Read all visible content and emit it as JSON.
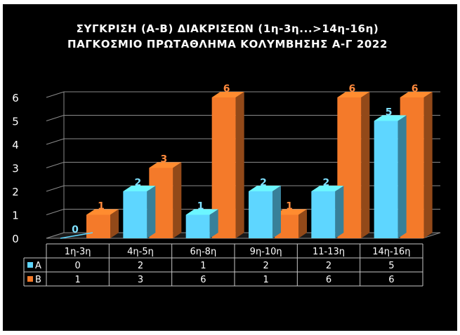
{
  "chart_data": {
    "type": "bar",
    "title_line1": "ΣΥΓΚΡΙΣΗ (Α-Β) ΔΙΑΚΡΙΣΕΩΝ (1η-3η...>14η-16η)",
    "title_line2": "ΠΑΓΚΟΣΜΙΟ ΠΡΩΤΑΘΛΗΜΑ ΚΟΛΥΜΒΗΣΗΣ Α-Γ 2022",
    "categories": [
      "1η-3η",
      "4η-5η",
      "6η-8η",
      "9η-10η",
      "11-13η",
      "14η-16η"
    ],
    "series": [
      {
        "name": "Α",
        "values": [
          0,
          2,
          1,
          2,
          2,
          5
        ],
        "color": "#5ed6ff"
      },
      {
        "name": "Β",
        "values": [
          1,
          3,
          6,
          1,
          6,
          6
        ],
        "color": "#f47a2a"
      }
    ],
    "ylim": [
      0,
      6
    ],
    "yticks": [
      "0",
      "1",
      "2",
      "3",
      "4",
      "5",
      "6"
    ],
    "grid": true,
    "legend": "data-table"
  }
}
